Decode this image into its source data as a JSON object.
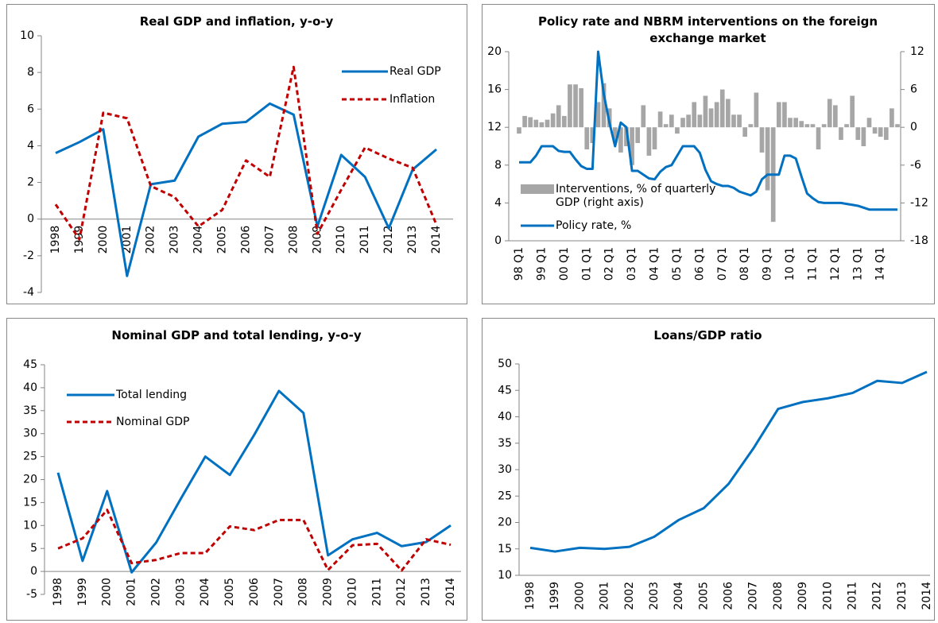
{
  "chart_data": [
    {
      "type": "line",
      "title": "Real GDP and inflation, y-o-y",
      "categories": [
        "1998",
        "1999",
        "2000",
        "2001",
        "2002",
        "2003",
        "2004",
        "2005",
        "2006",
        "2007",
        "2008",
        "2009",
        "2010",
        "2011",
        "2012",
        "2013",
        "2014"
      ],
      "series": [
        {
          "name": "Real GDP",
          "color": "#0070c0",
          "style": "solid",
          "values": [
            3.6,
            4.2,
            4.9,
            -3.1,
            1.9,
            2.1,
            4.5,
            5.2,
            5.3,
            6.3,
            5.7,
            -0.4,
            3.5,
            2.3,
            -0.5,
            2.7,
            3.8
          ]
        },
        {
          "name": "Inflation",
          "color": "#c00000",
          "style": "dashed",
          "values": [
            0.8,
            -1.1,
            5.8,
            5.5,
            1.8,
            1.2,
            -0.4,
            0.5,
            3.2,
            2.3,
            8.3,
            -0.8,
            1.6,
            3.9,
            3.3,
            2.8,
            -0.3
          ]
        }
      ],
      "ylim": [
        -4,
        10
      ],
      "yticks": [
        -4,
        -2,
        0,
        2,
        4,
        6,
        8,
        10
      ],
      "legend": "upper right"
    },
    {
      "type": "combo",
      "title": "Policy rate and NBRM interventions on the foreign exchange market",
      "categories": [
        "98 Q1",
        null,
        null,
        null,
        "99 Q1",
        null,
        null,
        null,
        "00 Q1",
        null,
        null,
        null,
        "01 Q1",
        null,
        null,
        null,
        "02 Q1",
        null,
        null,
        null,
        "03 Q1",
        null,
        null,
        null,
        "04 Q1",
        null,
        null,
        null,
        "05 Q1",
        null,
        null,
        null,
        "06 Q1",
        null,
        null,
        null,
        "07 Q1",
        null,
        null,
        null,
        "08 Q1",
        null,
        null,
        null,
        "09 Q1",
        null,
        null,
        null,
        "10 Q1",
        null,
        null,
        null,
        "11 Q1",
        null,
        null,
        null,
        "12 Q1",
        null,
        null,
        null,
        "13 Q1",
        null,
        null,
        null,
        "14 Q1",
        null,
        null,
        null
      ],
      "series": [
        {
          "name": "Interventions, % of quarterly GDP (right axis)",
          "type": "bar",
          "axis": "y2",
          "color": "#a6a6a6",
          "values": [
            -1.0,
            1.8,
            1.6,
            1.2,
            0.8,
            1.2,
            2.2,
            3.5,
            1.8,
            6.8,
            6.8,
            6.2,
            -3.5,
            -2.5,
            4.0,
            7.0,
            3.0,
            -2.5,
            -4.0,
            -3.0,
            -6.0,
            -2.5,
            3.5,
            -4.5,
            -3.5,
            2.5,
            0.5,
            2.0,
            -1.0,
            1.5,
            2.0,
            4.0,
            2.0,
            5.0,
            3.0,
            4.0,
            6.0,
            4.5,
            2.0,
            2.0,
            -1.5,
            0.5,
            5.5,
            -4.0,
            -10.0,
            -15.0,
            4.0,
            4.0,
            1.5,
            1.5,
            1.0,
            0.5,
            0.5,
            -3.5,
            0.5,
            4.5,
            3.5,
            -2.0,
            0.5,
            5.0,
            -2.0,
            -3.0,
            1.5,
            -1.0,
            -1.5,
            -2.0,
            3.0,
            0.5
          ]
        },
        {
          "name": "Policy rate, %",
          "type": "line",
          "color": "#0070c0",
          "values": [
            8.3,
            8.3,
            8.3,
            9.0,
            10.0,
            10.0,
            10.0,
            9.5,
            9.4,
            9.4,
            8.6,
            7.9,
            7.6,
            7.6,
            20.0,
            15.5,
            12.5,
            10.0,
            12.5,
            12.0,
            7.4,
            7.4,
            7.0,
            6.6,
            6.5,
            7.3,
            7.8,
            8.0,
            9.0,
            10.0,
            10.0,
            10.0,
            9.3,
            7.5,
            6.3,
            6.0,
            5.8,
            5.8,
            5.6,
            5.2,
            5.0,
            4.8,
            5.2,
            6.5,
            7.0,
            7.0,
            7.0,
            9.0,
            9.0,
            8.7,
            6.8,
            5.0,
            4.5,
            4.1,
            4.0,
            4.0,
            4.0,
            4.0,
            3.9,
            3.8,
            3.7,
            3.5,
            3.3,
            3.3,
            3.3,
            3.3,
            3.3,
            3.3
          ]
        }
      ],
      "ylim": [
        0,
        20
      ],
      "yticks": [
        0,
        4,
        8,
        12,
        16,
        20
      ],
      "y2lim": [
        -18,
        12
      ],
      "y2ticks": [
        -18,
        -12,
        -6,
        0,
        6,
        12
      ],
      "legend": "lower left"
    },
    {
      "type": "line",
      "title": "Nominal GDP and total lending, y-o-y",
      "categories": [
        "1998",
        "1999",
        "2000",
        "2001",
        "2002",
        "2003",
        "2004",
        "2005",
        "2006",
        "2007",
        "2008",
        "2009",
        "2010",
        "2011",
        "2012",
        "2013",
        "2014"
      ],
      "series": [
        {
          "name": "Total lending",
          "color": "#0070c0",
          "style": "solid",
          "values": [
            21.5,
            2.3,
            17.5,
            -0.2,
            6.3,
            15.8,
            25.0,
            21.0,
            29.8,
            39.3,
            34.5,
            3.5,
            7.0,
            8.4,
            5.5,
            6.4,
            10.0
          ]
        },
        {
          "name": "Nominal GDP",
          "color": "#c00000",
          "style": "dashed",
          "values": [
            5.0,
            7.2,
            13.4,
            1.8,
            2.5,
            4.0,
            4.0,
            9.8,
            9.0,
            11.2,
            11.2,
            0.3,
            5.7,
            6.0,
            0.2,
            7.0,
            5.8
          ]
        }
      ],
      "ylim": [
        -5,
        45
      ],
      "yticks": [
        -5,
        0,
        5,
        10,
        15,
        20,
        25,
        30,
        35,
        40,
        45
      ],
      "legend": "upper left"
    },
    {
      "type": "line",
      "title": "Loans/GDP ratio",
      "categories": [
        "1998",
        "1999",
        "2000",
        "2001",
        "2002",
        "2003",
        "2004",
        "2005",
        "2006",
        "2007",
        "2008",
        "2009",
        "2010",
        "2011",
        "2012",
        "2013",
        "2014"
      ],
      "series": [
        {
          "color": "#0070c0",
          "style": "solid",
          "values": [
            15.2,
            14.5,
            15.2,
            15.0,
            15.4,
            17.3,
            20.5,
            22.7,
            27.3,
            34.0,
            41.5,
            42.8,
            43.5,
            44.5,
            46.8,
            46.4,
            48.5
          ]
        }
      ],
      "ylim": [
        10,
        50
      ],
      "yticks": [
        10,
        15,
        20,
        25,
        30,
        35,
        40,
        45,
        50
      ]
    }
  ]
}
